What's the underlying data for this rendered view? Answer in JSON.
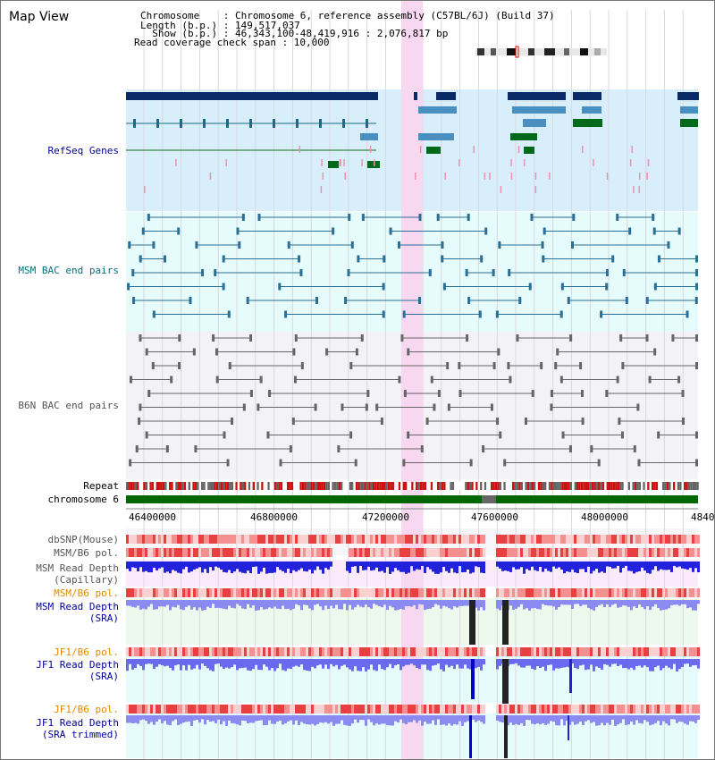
{
  "title": "Map View",
  "header": {
    "chromosome_line": "Chromosome    : Chromosome 6, reference assembly (C57BL/6J) (Build 37)",
    "length_line": "Length (b.p.) : 149,517,037",
    "show_line": "  Show (b.p.) : 46,343,100-48,419,916 : 2,076,817 bp",
    "coverage_line": "Read coverage check span : 10,000"
  },
  "tracks": {
    "refseq": "RefSeq Genes",
    "msm_bac": "MSM BAC end pairs",
    "b6n_bac": "B6N BAC end pairs",
    "repeat": "Repeat",
    "chromosome": "chromosome 6",
    "dbsnp": "dbSNP(Mouse)",
    "msm_pol1": "MSM/B6 pol.",
    "msm_depth_cap_1": "MSM Read Depth",
    "msm_depth_cap_2": "(Capillary)",
    "msm_pol2": "MSM/B6 pol.",
    "msm_depth_sra_1": "MSM Read Depth",
    "msm_depth_sra_2": "(SRA)",
    "jf1_pol1": "JF1/B6 pol.",
    "jf1_depth_1": "JF1 Read Depth",
    "jf1_depth_2": "(SRA)",
    "jf1_pol2": "JF1/B6 pol.",
    "jf1_depth_trim_1": "JF1 Read Depth",
    "jf1_depth_trim_2": "(SRA trimmed)"
  },
  "axis_ticks": [
    "46400000",
    "46800000",
    "47200000",
    "47600000",
    "48000000",
    "4840"
  ],
  "colors": {
    "refseq_bg": "#d8eefa",
    "bac_bg": "#e6fbfb",
    "b6n_bg": "#f3f3f7",
    "highlight": "#f8d8f0",
    "chromosome_bar": "#006600",
    "gene_dark": "#0a2a66",
    "gene_mid": "#4a8fbf",
    "gene_green": "#006a1a",
    "depth_blue": "#2222ee"
  }
}
